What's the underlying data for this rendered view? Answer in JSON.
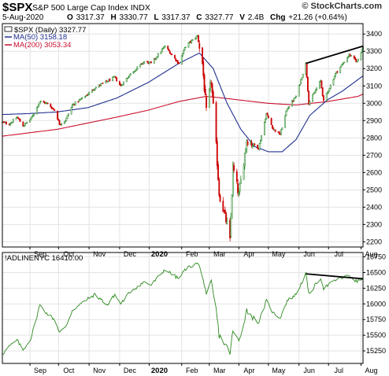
{
  "header": {
    "symbol": "$SPX",
    "name": "S&P 500 Large Cap Index",
    "exchange": "INDX",
    "brand": "© StockCharts.com",
    "date": "5-Aug-2020",
    "ohlc": [
      {
        "label": "O",
        "value": "3317.37"
      },
      {
        "label": "H",
        "value": "3330.77"
      },
      {
        "label": "L",
        "value": "3317.37"
      },
      {
        "label": "C",
        "value": "3327.77"
      },
      {
        "label": "V",
        "value": "2.4B"
      },
      {
        "label": "Chg",
        "value": "+21.26 (+0.64%)"
      }
    ]
  },
  "legend": {
    "price": "$SPX (Daily) 3327.77",
    "ma50": "MA(50) 3158.18",
    "ma200": "MA(200) 3053.34",
    "ad": "!ADLINENYC 16410.00"
  },
  "colors": {
    "candle_up": "#2a8a2a",
    "candle_down": "#cc0000",
    "ma50": "#1f2f8f",
    "ma200": "#c8102e",
    "ad_line": "#2d8a1f",
    "trendline": "#000000",
    "grid": "#e3e3e3"
  },
  "chart_data": [
    {
      "type": "candlestick",
      "series": [
        {
          "name": "$SPX (Daily)",
          "last": 3327.77,
          "anchors": [
            [
              "2019-08-05",
              2890
            ],
            [
              "2019-08-12",
              2880
            ],
            [
              "2019-08-20",
              2920
            ],
            [
              "2019-08-26",
              2870
            ],
            [
              "2019-09-03",
              2910
            ],
            [
              "2019-09-12",
              3010
            ],
            [
              "2019-09-19",
              3000
            ],
            [
              "2019-09-27",
              2960
            ],
            [
              "2019-10-02",
              2880
            ],
            [
              "2019-10-08",
              2900
            ],
            [
              "2019-10-15",
              2990
            ],
            [
              "2019-10-28",
              3040
            ],
            [
              "2019-11-07",
              3090
            ],
            [
              "2019-11-27",
              3150
            ],
            [
              "2019-12-03",
              3100
            ],
            [
              "2019-12-13",
              3170
            ],
            [
              "2019-12-27",
              3240
            ],
            [
              "2020-01-03",
              3230
            ],
            [
              "2020-01-17",
              3330
            ],
            [
              "2020-01-31",
              3230
            ],
            [
              "2020-02-07",
              3330
            ],
            [
              "2020-02-19",
              3390
            ],
            [
              "2020-02-24",
              3230
            ],
            [
              "2020-02-28",
              2950
            ],
            [
              "2020-03-04",
              3130
            ],
            [
              "2020-03-09",
              2750
            ],
            [
              "2020-03-12",
              2480
            ],
            [
              "2020-03-16",
              2390
            ],
            [
              "2020-03-20",
              2300
            ],
            [
              "2020-03-23",
              2200
            ],
            [
              "2020-03-26",
              2630
            ],
            [
              "2020-04-01",
              2470
            ],
            [
              "2020-04-09",
              2790
            ],
            [
              "2020-04-21",
              2740
            ],
            [
              "2020-04-29",
              2940
            ],
            [
              "2020-05-06",
              2850
            ],
            [
              "2020-05-13",
              2820
            ],
            [
              "2020-05-20",
              2970
            ],
            [
              "2020-05-29",
              3040
            ],
            [
              "2020-06-08",
              3230
            ],
            [
              "2020-06-11",
              3000
            ],
            [
              "2020-06-23",
              3130
            ],
            [
              "2020-06-26",
              3010
            ],
            [
              "2020-07-08",
              3170
            ],
            [
              "2020-07-22",
              3280
            ],
            [
              "2020-07-30",
              3240
            ],
            [
              "2020-08-05",
              3328
            ]
          ]
        },
        {
          "name": "MA(50)",
          "last": 3158.18,
          "anchors": [
            [
              "2019-08-05",
              2935
            ],
            [
              "2019-08-30",
              2940
            ],
            [
              "2019-09-30",
              2950
            ],
            [
              "2019-10-31",
              2975
            ],
            [
              "2019-11-29",
              3030
            ],
            [
              "2019-12-31",
              3120
            ],
            [
              "2020-01-31",
              3230
            ],
            [
              "2020-02-21",
              3290
            ],
            [
              "2020-03-06",
              3200
            ],
            [
              "2020-03-20",
              3000
            ],
            [
              "2020-04-03",
              2850
            ],
            [
              "2020-04-17",
              2750
            ],
            [
              "2020-05-01",
              2720
            ],
            [
              "2020-05-15",
              2720
            ],
            [
              "2020-05-29",
              2790
            ],
            [
              "2020-06-12",
              2930
            ],
            [
              "2020-06-30",
              3020
            ],
            [
              "2020-07-15",
              3070
            ],
            [
              "2020-08-05",
              3158
            ]
          ]
        },
        {
          "name": "MA(200)",
          "last": 3053.34,
          "anchors": [
            [
              "2019-08-05",
              2810
            ],
            [
              "2019-09-30",
              2850
            ],
            [
              "2019-11-29",
              2920
            ],
            [
              "2019-12-31",
              2960
            ],
            [
              "2020-01-31",
              3010
            ],
            [
              "2020-02-28",
              3040
            ],
            [
              "2020-03-16",
              3030
            ],
            [
              "2020-04-30",
              3000
            ],
            [
              "2020-05-29",
              2990
            ],
            [
              "2020-06-30",
              3010
            ],
            [
              "2020-07-31",
              3040
            ],
            [
              "2020-08-05",
              3053
            ]
          ]
        }
      ],
      "trendline": [
        [
          "2020-06-08",
          3230
        ],
        [
          "2020-08-05",
          3330
        ]
      ],
      "y_ticks": [
        2200,
        2300,
        2400,
        2500,
        2600,
        2700,
        2800,
        2900,
        3000,
        3100,
        3200,
        3300,
        3400
      ],
      "x_ticks": [
        "Sep",
        "Oct",
        "Nov",
        "Dec",
        "2020",
        "Feb",
        "Mar",
        "Apr",
        "May",
        "Jun",
        "Jul",
        "Aug"
      ],
      "ylim": [
        2170,
        3460
      ],
      "xlim": [
        "2019-08-05",
        "2020-08-05"
      ]
    },
    {
      "type": "line",
      "series": [
        {
          "name": "!ADLINENYC",
          "last": 16410,
          "anchors": [
            [
              "2019-08-05",
              15200
            ],
            [
              "2019-08-12",
              15320
            ],
            [
              "2019-08-20",
              15420
            ],
            [
              "2019-08-26",
              15260
            ],
            [
              "2019-09-03",
              15450
            ],
            [
              "2019-09-12",
              15980
            ],
            [
              "2019-09-19",
              15850
            ],
            [
              "2019-09-27",
              15750
            ],
            [
              "2019-10-02",
              15550
            ],
            [
              "2019-10-08",
              15620
            ],
            [
              "2019-10-15",
              15900
            ],
            [
              "2019-10-28",
              16050
            ],
            [
              "2019-11-07",
              16150
            ],
            [
              "2019-11-20",
              15980
            ],
            [
              "2019-11-27",
              16150
            ],
            [
              "2019-12-03",
              16000
            ],
            [
              "2019-12-13",
              16200
            ],
            [
              "2019-12-27",
              16350
            ],
            [
              "2020-01-03",
              16300
            ],
            [
              "2020-01-17",
              16550
            ],
            [
              "2020-01-31",
              16400
            ],
            [
              "2020-02-07",
              16560
            ],
            [
              "2020-02-19",
              16650
            ],
            [
              "2020-02-24",
              16480
            ],
            [
              "2020-02-28",
              16100
            ],
            [
              "2020-03-04",
              16350
            ],
            [
              "2020-03-09",
              15900
            ],
            [
              "2020-03-12",
              15500
            ],
            [
              "2020-03-16",
              15400
            ],
            [
              "2020-03-20",
              15300
            ],
            [
              "2020-03-23",
              15230
            ],
            [
              "2020-03-26",
              15560
            ],
            [
              "2020-04-01",
              15400
            ],
            [
              "2020-04-09",
              15900
            ],
            [
              "2020-04-21",
              15700
            ],
            [
              "2020-04-29",
              16050
            ],
            [
              "2020-05-06",
              15850
            ],
            [
              "2020-05-13",
              15780
            ],
            [
              "2020-05-20",
              16050
            ],
            [
              "2020-05-29",
              16150
            ],
            [
              "2020-06-08",
              16480
            ],
            [
              "2020-06-11",
              16150
            ],
            [
              "2020-06-23",
              16420
            ],
            [
              "2020-06-26",
              16250
            ],
            [
              "2020-07-08",
              16380
            ],
            [
              "2020-07-22",
              16450
            ],
            [
              "2020-07-30",
              16350
            ],
            [
              "2020-08-05",
              16410
            ]
          ]
        }
      ],
      "trendline": [
        [
          "2020-06-08",
          16480
        ],
        [
          "2020-08-05",
          16400
        ]
      ],
      "y_ticks": [
        15250,
        15500,
        15750,
        16000,
        16250,
        16500,
        16750
      ],
      "x_ticks": [
        "Sep",
        "Oct",
        "Nov",
        "Dec",
        "2020",
        "Feb",
        "Mar",
        "Apr",
        "May",
        "Jun",
        "Jul",
        "Aug"
      ],
      "ylim": [
        15050,
        16820
      ],
      "xlim": [
        "2019-08-05",
        "2020-08-05"
      ]
    }
  ]
}
